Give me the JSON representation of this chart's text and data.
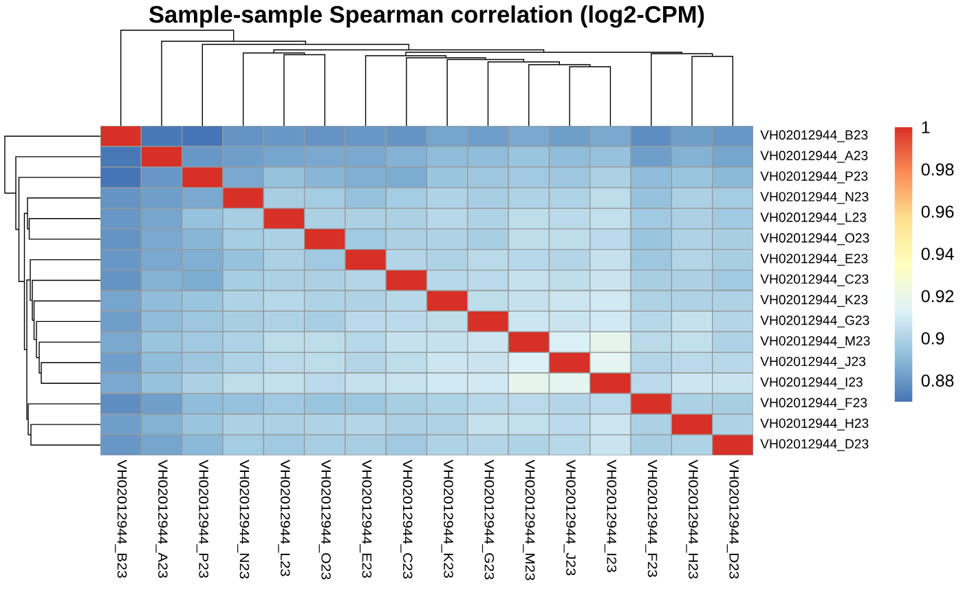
{
  "chart_data": {
    "type": "heatmap",
    "title": "Sample-sample Spearman correlation (log2-CPM)",
    "categories": [
      "VH02012944_B23",
      "VH02012944_A23",
      "VH02012944_P23",
      "VH02012944_N23",
      "VH02012944_L23",
      "VH02012944_O23",
      "VH02012944_E23",
      "VH02012944_C23",
      "VH02012944_K23",
      "VH02012944_G23",
      "VH02012944_M23",
      "VH02012944_J23",
      "VH02012944_I23",
      "VH02012944_F23",
      "VH02012944_H23",
      "VH02012944_D23"
    ],
    "y_categories": [
      "VH02012944_B23",
      "VH02012944_A23",
      "VH02012944_P23",
      "VH02012944_N23",
      "VH02012944_L23",
      "VH02012944_O23",
      "VH02012944_E23",
      "VH02012944_C23",
      "VH02012944_K23",
      "VH02012944_G23",
      "VH02012944_M23",
      "VH02012944_J23",
      "VH02012944_I23",
      "VH02012944_F23",
      "VH02012944_H23",
      "VH02012944_D23"
    ],
    "cells": [
      [
        1,
        0.871,
        0.87,
        0.879,
        0.88,
        0.879,
        0.88,
        0.879,
        0.884,
        0.882,
        0.885,
        0.882,
        0.885,
        0.877,
        0.882,
        0.88
      ],
      [
        0.871,
        1,
        0.88,
        0.882,
        0.884,
        0.885,
        0.885,
        0.888,
        0.891,
        0.891,
        0.894,
        0.891,
        0.893,
        0.882,
        0.888,
        0.884
      ],
      [
        0.87,
        0.88,
        1,
        0.885,
        0.893,
        0.889,
        0.887,
        0.886,
        0.894,
        0.895,
        0.896,
        0.895,
        0.899,
        0.891,
        0.894,
        0.89
      ],
      [
        0.879,
        0.882,
        0.885,
        1,
        0.898,
        0.897,
        0.893,
        0.897,
        0.9,
        0.898,
        0.9,
        0.9,
        0.904,
        0.893,
        0.899,
        0.897
      ],
      [
        0.88,
        0.884,
        0.893,
        0.898,
        1,
        0.899,
        0.899,
        0.899,
        0.902,
        0.9,
        0.904,
        0.903,
        0.905,
        0.896,
        0.899,
        0.896
      ],
      [
        0.879,
        0.885,
        0.889,
        0.897,
        0.899,
        1,
        0.896,
        0.899,
        0.9,
        0.898,
        0.904,
        0.904,
        0.903,
        0.894,
        0.9,
        0.898
      ],
      [
        0.88,
        0.885,
        0.887,
        0.893,
        0.899,
        0.896,
        1,
        0.901,
        0.9,
        0.903,
        0.902,
        0.901,
        0.906,
        0.895,
        0.901,
        0.898
      ],
      [
        0.879,
        0.888,
        0.886,
        0.897,
        0.899,
        0.899,
        0.901,
        1,
        0.902,
        0.903,
        0.906,
        0.904,
        0.907,
        0.898,
        0.899,
        0.896
      ],
      [
        0.884,
        0.891,
        0.894,
        0.9,
        0.902,
        0.9,
        0.9,
        0.902,
        1,
        0.904,
        0.906,
        0.908,
        0.909,
        0.9,
        0.9,
        0.9
      ],
      [
        0.882,
        0.891,
        0.895,
        0.898,
        0.9,
        0.898,
        0.903,
        0.903,
        0.904,
        1,
        0.908,
        0.907,
        0.909,
        0.902,
        0.906,
        0.901
      ],
      [
        0.885,
        0.894,
        0.896,
        0.9,
        0.904,
        0.904,
        0.902,
        0.906,
        0.906,
        0.908,
        1,
        0.912,
        0.917,
        0.903,
        0.905,
        0.9
      ],
      [
        0.882,
        0.891,
        0.895,
        0.9,
        0.903,
        0.904,
        0.901,
        0.904,
        0.908,
        0.907,
        0.912,
        1,
        0.916,
        0.901,
        0.903,
        0.902
      ],
      [
        0.885,
        0.893,
        0.899,
        0.904,
        0.905,
        0.903,
        0.906,
        0.907,
        0.909,
        0.909,
        0.917,
        0.916,
        1,
        0.903,
        0.908,
        0.907
      ],
      [
        0.877,
        0.882,
        0.891,
        0.893,
        0.896,
        0.894,
        0.895,
        0.898,
        0.9,
        0.902,
        0.903,
        0.901,
        0.903,
        1,
        0.899,
        0.898
      ],
      [
        0.882,
        0.888,
        0.894,
        0.899,
        0.899,
        0.9,
        0.901,
        0.899,
        0.9,
        0.906,
        0.905,
        0.903,
        0.908,
        0.899,
        1,
        0.9
      ],
      [
        0.88,
        0.884,
        0.89,
        0.897,
        0.896,
        0.898,
        0.898,
        0.896,
        0.9,
        0.901,
        0.9,
        0.902,
        0.907,
        0.898,
        0.9,
        1
      ]
    ],
    "clim": [
      0.87,
      1
    ],
    "cticks": [
      0.88,
      0.9,
      0.92,
      0.94,
      0.96,
      0.98,
      1
    ]
  }
}
